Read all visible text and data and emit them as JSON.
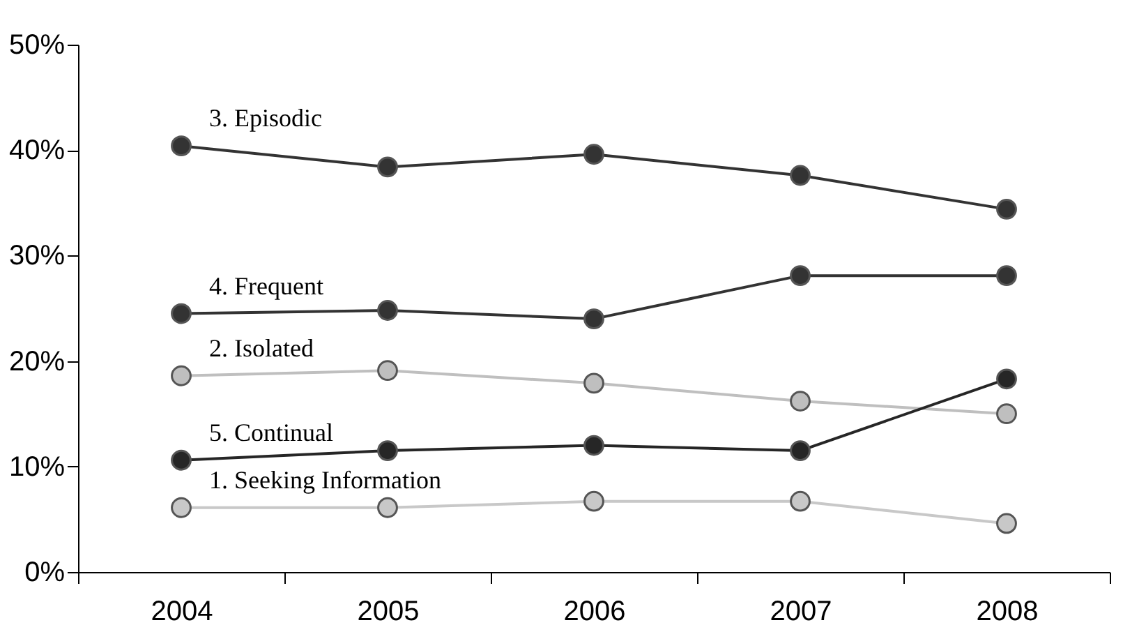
{
  "chart_data": {
    "type": "line",
    "categories": [
      "2004",
      "2005",
      "2006",
      "2007",
      "2008"
    ],
    "series": [
      {
        "name": "3. Episodic",
        "color": "#333333",
        "values": [
          40.4,
          38.4,
          39.6,
          37.6,
          34.4
        ]
      },
      {
        "name": "4. Frequent",
        "color": "#333333",
        "values": [
          24.5,
          24.8,
          24.0,
          28.1,
          28.1
        ]
      },
      {
        "name": "2. Isolated",
        "color": "#bfbfbf",
        "values": [
          18.6,
          19.1,
          17.9,
          16.2,
          15.0
        ]
      },
      {
        "name": "5. Continual",
        "color": "#262626",
        "values": [
          10.6,
          11.5,
          12.0,
          11.5,
          18.3
        ]
      },
      {
        "name": "1. Seeking Information",
        "color": "#c8c8c8",
        "values": [
          6.1,
          6.1,
          6.7,
          6.7,
          4.6
        ]
      }
    ],
    "ylim": [
      0,
      50
    ],
    "yticks": [
      {
        "value": 0,
        "label": "0%"
      },
      {
        "value": 10,
        "label": "10%"
      },
      {
        "value": 20,
        "label": "20%"
      },
      {
        "value": 30,
        "label": "30%"
      },
      {
        "value": 40,
        "label": "40%"
      },
      {
        "value": 50,
        "label": "50%"
      }
    ],
    "grid": false,
    "marker": "circle",
    "line_style": "solid"
  }
}
